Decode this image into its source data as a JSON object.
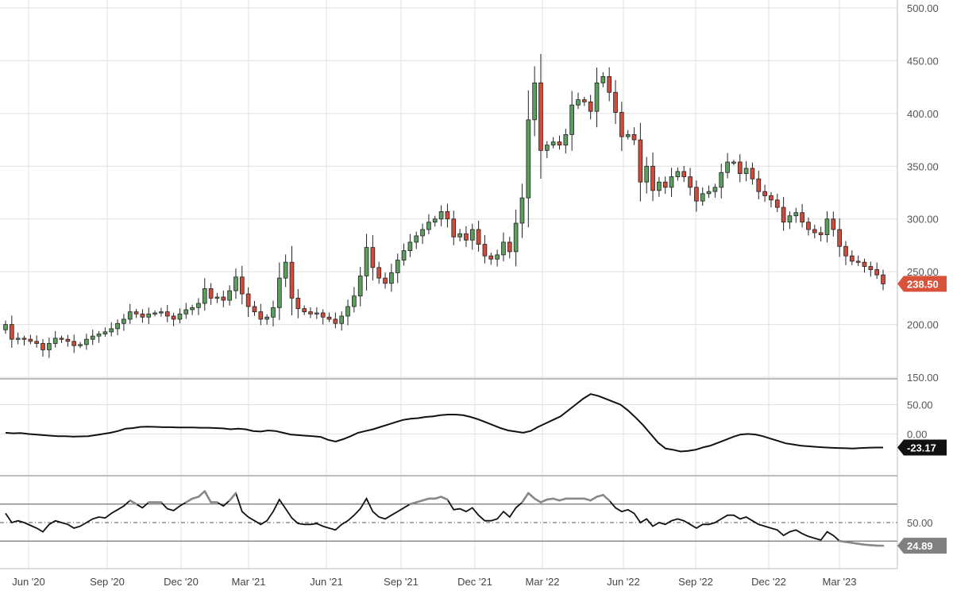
{
  "colors": {
    "up": "#5b9e5f",
    "down": "#cf4b3b",
    "wick": "#222222",
    "line": "#111111",
    "overbought": "#888888",
    "last_price_tag": "#d9533b",
    "indicator_tag": "#111111",
    "rsi_tag": "#808080"
  },
  "chart_data": [
    {
      "type": "candlestick",
      "panel": "price",
      "interval": "weekly",
      "ylim": [
        150,
        500
      ],
      "y_ticks": [
        "500.00",
        "450.00",
        "400.00",
        "350.00",
        "300.00",
        "250.00",
        "200.00",
        "150.00"
      ],
      "x_ticks": [
        "Jun '20",
        "Sep '20",
        "Dec '20",
        "Mar '21",
        "Jun '21",
        "Sep '21",
        "Dec '21",
        "Mar '22",
        "Jun '22",
        "Sep '22",
        "Dec '22",
        "Mar '23"
      ],
      "close": [
        200,
        186,
        187,
        186,
        184,
        182,
        176,
        182,
        187,
        186,
        184,
        180,
        181,
        186,
        189,
        191,
        193,
        196,
        201,
        205,
        212,
        210,
        207,
        210,
        211,
        212,
        208,
        205,
        210,
        214,
        216,
        220,
        234,
        225,
        226,
        223,
        232,
        245,
        229,
        217,
        212,
        205,
        207,
        216,
        244,
        259,
        225,
        215,
        212,
        210,
        211,
        207,
        205,
        201,
        208,
        217,
        227,
        246,
        273,
        254,
        244,
        239,
        249,
        261,
        270,
        278,
        284,
        290,
        297,
        300,
        307,
        300,
        283,
        286,
        280,
        290,
        276,
        265,
        262,
        266,
        278,
        269,
        296,
        320,
        394,
        429,
        365,
        370,
        373,
        370,
        380,
        408,
        413,
        411,
        402,
        429,
        435,
        420,
        401,
        378,
        380,
        375,
        335,
        350,
        327,
        335,
        330,
        340,
        345,
        340,
        330,
        317,
        324,
        326,
        330,
        344,
        354,
        354,
        343,
        348,
        338,
        326,
        322,
        318,
        311,
        297,
        303,
        306,
        297,
        290,
        287,
        285,
        300,
        290,
        274,
        265,
        260,
        259,
        255,
        252,
        247,
        238.5
      ]
    },
    {
      "type": "line",
      "panel": "oscillator",
      "ylim": [
        -70,
        90
      ],
      "y_ticks": [
        "50.00",
        "0.00"
      ],
      "last_value": "-23.17",
      "values": [
        2,
        1,
        1.5,
        0,
        -1,
        -2,
        -3,
        -4,
        -4,
        -4.5,
        -4.2,
        -4,
        -2,
        0,
        2,
        5,
        9,
        10,
        12,
        12.5,
        12,
        11.5,
        11.5,
        11,
        11,
        11,
        10.5,
        10.5,
        10,
        9.5,
        8,
        9,
        8,
        5,
        4,
        6,
        5,
        2,
        -1,
        -2,
        -3,
        -4,
        -5,
        -10,
        -13,
        -9,
        -4,
        2,
        5,
        8,
        12,
        16,
        20,
        24,
        26,
        27,
        29,
        30,
        32,
        33,
        33,
        32,
        29,
        25,
        20,
        15,
        10,
        6,
        4,
        2,
        5,
        12,
        18,
        24,
        30,
        40,
        50,
        60,
        68,
        65,
        60,
        55,
        50,
        40,
        28,
        15,
        0,
        -15,
        -25,
        -27,
        -30,
        -29,
        -27,
        -23,
        -20,
        -15,
        -10,
        -5,
        -1,
        0,
        -1,
        -4,
        -8,
        -12,
        -16,
        -18,
        -20,
        -21,
        -22,
        -23,
        -23.5,
        -24,
        -24.5,
        -25,
        -24,
        -23.5,
        -23.2,
        -23.17
      ]
    },
    {
      "type": "line",
      "panel": "rsi",
      "ylim": [
        0,
        100
      ],
      "y_ticks": [
        "50.00"
      ],
      "reference_lines": [
        30,
        50,
        70
      ],
      "last_value": "24.89",
      "values": [
        60,
        50,
        52,
        50,
        47,
        44,
        40,
        48,
        52,
        50,
        48,
        44,
        46,
        50,
        54,
        56,
        55,
        60,
        64,
        68,
        74,
        70,
        66,
        72,
        72,
        72,
        65,
        63,
        68,
        72,
        76,
        78,
        84,
        72,
        72,
        68,
        74,
        82,
        62,
        56,
        52,
        48,
        52,
        62,
        75,
        65,
        55,
        49,
        48,
        48,
        49,
        46,
        44,
        42,
        48,
        52,
        58,
        65,
        76,
        62,
        56,
        54,
        58,
        62,
        66,
        70,
        72,
        74,
        76,
        76,
        78,
        75,
        64,
        65,
        62,
        66,
        58,
        52,
        52,
        54,
        62,
        56,
        66,
        72,
        82,
        76,
        72,
        75,
        76,
        74,
        76,
        76,
        76,
        76,
        74,
        78,
        80,
        74,
        66,
        62,
        64,
        60,
        50,
        54,
        46,
        50,
        48,
        52,
        54,
        52,
        48,
        44,
        48,
        48,
        50,
        54,
        58,
        58,
        54,
        56,
        52,
        48,
        46,
        44,
        42,
        36,
        40,
        42,
        38,
        35,
        33,
        31,
        40,
        36,
        30,
        29,
        28,
        27,
        26,
        25.5,
        25,
        24.89
      ]
    }
  ],
  "last_price_label": "238.50"
}
